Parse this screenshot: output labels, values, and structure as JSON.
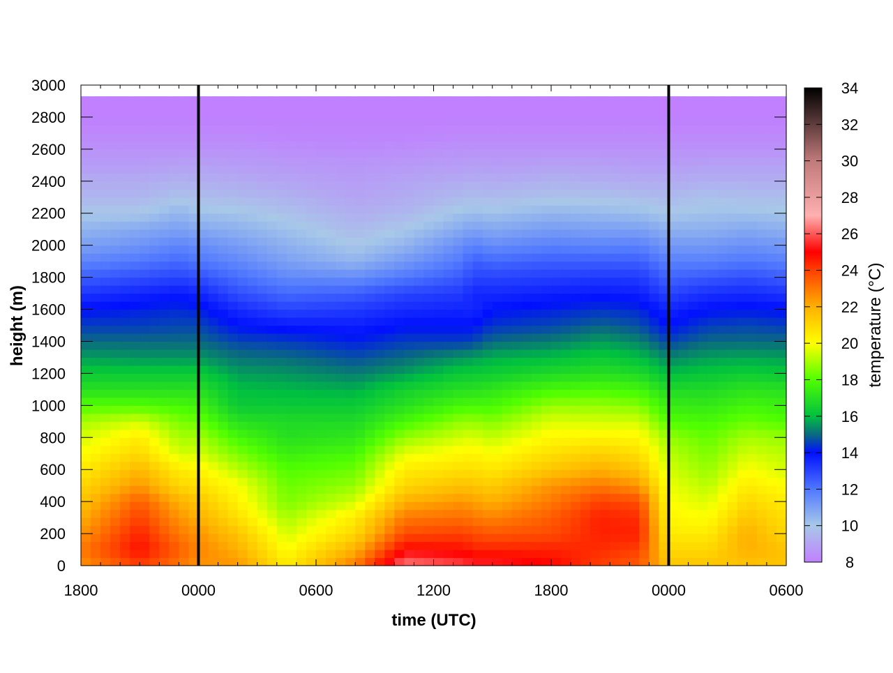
{
  "chart_data": {
    "type": "heatmap",
    "xlabel": "time (UTC)",
    "ylabel": "height (m)",
    "colorbar_label": "temperature (°C)",
    "x_range_hours": [
      0,
      36
    ],
    "x_ticks": [
      {
        "hours": 0,
        "label": "1800"
      },
      {
        "hours": 6,
        "label": "0000"
      },
      {
        "hours": 12,
        "label": "0600"
      },
      {
        "hours": 18,
        "label": "1200"
      },
      {
        "hours": 24,
        "label": "1800"
      },
      {
        "hours": 30,
        "label": "0000"
      },
      {
        "hours": 36,
        "label": "0600"
      }
    ],
    "ylim": [
      0,
      3000
    ],
    "y_ticks": [
      0,
      200,
      400,
      600,
      800,
      1000,
      1200,
      1400,
      1600,
      1800,
      2000,
      2200,
      2400,
      2600,
      2800,
      3000
    ],
    "data_top_height": 2930,
    "colorbar_range": [
      8,
      34
    ],
    "colorbar_ticks": [
      8,
      10,
      12,
      14,
      16,
      18,
      20,
      22,
      24,
      26,
      28,
      30,
      32,
      34
    ],
    "colormap": [
      {
        "t": 8,
        "color": "#c080ff"
      },
      {
        "t": 10,
        "color": "#a8c8e8"
      },
      {
        "t": 12,
        "color": "#5078ff"
      },
      {
        "t": 14,
        "color": "#0010ff"
      },
      {
        "t": 15,
        "color": "#0a6a80"
      },
      {
        "t": 16,
        "color": "#00c040"
      },
      {
        "t": 18,
        "color": "#50ff00"
      },
      {
        "t": 20,
        "color": "#ffff00"
      },
      {
        "t": 22,
        "color": "#ffb000"
      },
      {
        "t": 24,
        "color": "#ff4000"
      },
      {
        "t": 25,
        "color": "#ff0000"
      },
      {
        "t": 27,
        "color": "#ffb0b0"
      },
      {
        "t": 30,
        "color": "#c07a7a"
      },
      {
        "t": 34,
        "color": "#000000"
      }
    ],
    "vertical_lines_label": "0000",
    "vertical_lines_hours": [
      6,
      30
    ],
    "heights": [
      0,
      100,
      200,
      300,
      400,
      500,
      600,
      700,
      800,
      900,
      1000,
      1100,
      1200,
      1300,
      1400,
      1500,
      1600,
      1700,
      1800,
      1900,
      2000,
      2100,
      2200,
      2300,
      2400,
      2500,
      2600,
      2700,
      2800,
      2930
    ],
    "profiles": [
      {
        "hours": 0,
        "temps": [
          22.5,
          23.0,
          22.5,
          22.0,
          21.5,
          21.0,
          20.5,
          20.0,
          19.5,
          19.0,
          18.0,
          17.0,
          16.3,
          15.6,
          15.0,
          14.5,
          14.0,
          13.3,
          12.5,
          11.7,
          11.0,
          10.5,
          10.0,
          9.5,
          9.2,
          8.8,
          8.5,
          8.2,
          8.0,
          8.0
        ]
      },
      {
        "hours": 3,
        "temps": [
          24.0,
          24.8,
          24.5,
          24.0,
          23.5,
          22.5,
          21.8,
          21.0,
          20.5,
          19.5,
          18.0,
          17.0,
          16.3,
          15.5,
          15.0,
          14.5,
          14.2,
          13.6,
          12.8,
          12.0,
          11.3,
          10.8,
          10.0,
          9.5,
          9.2,
          8.8,
          8.5,
          8.2,
          8.0,
          8.0
        ]
      },
      {
        "hours": 5,
        "temps": [
          23.0,
          23.5,
          23.0,
          22.5,
          22.0,
          21.0,
          20.5,
          19.5,
          19.0,
          18.5,
          17.8,
          17.0,
          16.3,
          15.5,
          15.0,
          14.6,
          14.3,
          13.8,
          13.0,
          12.3,
          11.7,
          11.0,
          10.5,
          9.8,
          9.4,
          8.9,
          8.5,
          8.2,
          8.0,
          8.0
        ]
      },
      {
        "hours": 6,
        "temps": [
          22.5,
          22.8,
          22.5,
          22.0,
          21.5,
          20.8,
          20.3,
          19.5,
          19.0,
          18.3,
          17.6,
          17.0,
          16.3,
          15.5,
          15.0,
          14.6,
          14.2,
          13.6,
          12.8,
          12.0,
          11.5,
          10.8,
          10.2,
          9.7,
          9.3,
          8.9,
          8.5,
          8.2,
          8.0,
          8.0
        ]
      },
      {
        "hours": 8,
        "temps": [
          22.5,
          22.0,
          21.5,
          20.8,
          20.3,
          20.0,
          19.2,
          18.5,
          17.8,
          17.0,
          16.3,
          16.0,
          15.6,
          15.1,
          14.6,
          14.0,
          13.5,
          12.8,
          12.2,
          11.6,
          11.1,
          10.6,
          10.1,
          9.6,
          9.2,
          8.8,
          8.5,
          8.2,
          8.0,
          8.0
        ]
      },
      {
        "hours": 10.5,
        "temps": [
          20.5,
          20.0,
          19.5,
          19.0,
          18.5,
          18.3,
          18.0,
          17.5,
          17.0,
          16.8,
          16.3,
          15.9,
          15.5,
          15.0,
          14.5,
          13.8,
          13.0,
          12.3,
          11.6,
          11.0,
          10.6,
          10.2,
          9.8,
          9.4,
          9.0,
          8.7,
          8.4,
          8.1,
          8.0,
          8.0
        ]
      },
      {
        "hours": 14,
        "temps": [
          23.0,
          22.0,
          21.0,
          20.5,
          19.5,
          18.8,
          18.3,
          17.8,
          17.2,
          16.8,
          16.3,
          15.8,
          15.2,
          14.7,
          14.2,
          13.7,
          13.2,
          12.5,
          11.5,
          10.5,
          10.0,
          9.6,
          9.3,
          9.0,
          8.8,
          8.6,
          8.3,
          8.1,
          8.0,
          8.0
        ]
      },
      {
        "hours": 16.5,
        "temps": [
          26.5,
          25.0,
          23.8,
          23.0,
          22.0,
          21.0,
          20.5,
          19.7,
          18.8,
          17.8,
          17.0,
          16.5,
          15.6,
          15.0,
          14.5,
          14.0,
          13.5,
          13.0,
          12.0,
          11.2,
          10.5,
          10.0,
          9.5,
          9.2,
          9.0,
          8.7,
          8.4,
          8.1,
          8.0,
          8.0
        ]
      },
      {
        "hours": 19.5,
        "temps": [
          25.8,
          24.8,
          24.0,
          23.2,
          22.5,
          21.6,
          20.8,
          20.2,
          19.5,
          18.8,
          17.8,
          17.0,
          16.3,
          15.5,
          14.5,
          14.0,
          13.6,
          13.2,
          12.6,
          12.0,
          11.5,
          10.8,
          10.2,
          9.6,
          9.2,
          8.8,
          8.5,
          8.2,
          8.0,
          8.0
        ]
      },
      {
        "hours": 20,
        "temps": [
          25.5,
          24.5,
          23.8,
          23.0,
          22.3,
          21.5,
          20.8,
          20.3,
          19.6,
          18.8,
          17.8,
          17.0,
          16.3,
          15.6,
          14.6,
          14.0,
          13.5,
          13.6,
          13.0,
          12.5,
          11.8,
          11.0,
          10.3,
          9.7,
          9.3,
          8.9,
          8.5,
          8.2,
          8.0,
          8.0
        ]
      },
      {
        "hours": 21,
        "temps": [
          25.5,
          24.5,
          23.6,
          22.8,
          22.0,
          21.3,
          20.6,
          20.0,
          19.3,
          18.6,
          17.8,
          17.2,
          16.4,
          15.8,
          15.0,
          14.4,
          14.0,
          13.5,
          13.0,
          12.3,
          11.5,
          10.8,
          10.2,
          9.6,
          9.2,
          8.8,
          8.5,
          8.2,
          8.0,
          8.0
        ]
      },
      {
        "hours": 24,
        "temps": [
          25.0,
          24.5,
          23.8,
          23.5,
          23.0,
          22.5,
          21.5,
          20.8,
          20.2,
          19.6,
          18.8,
          17.8,
          16.8,
          16.0,
          15.2,
          14.6,
          14.2,
          13.7,
          13.1,
          12.5,
          11.8,
          11.1,
          10.5,
          9.8,
          9.4,
          8.9,
          8.5,
          8.2,
          8.0,
          8.0
        ]
      },
      {
        "hours": 26.5,
        "temps": [
          24.0,
          24.3,
          24.5,
          24.5,
          24.0,
          23.0,
          22.0,
          21.2,
          20.3,
          19.5,
          18.8,
          17.9,
          17.0,
          16.3,
          15.6,
          14.9,
          14.4,
          13.8,
          13.2,
          12.5,
          11.7,
          11.0,
          10.4,
          9.8,
          9.3,
          8.9,
          8.5,
          8.2,
          8.0,
          8.0
        ]
      },
      {
        "hours": 28.5,
        "temps": [
          23.5,
          24.0,
          24.5,
          24.3,
          23.8,
          22.5,
          21.5,
          20.8,
          20.2,
          19.5,
          18.6,
          17.7,
          16.8,
          16.0,
          15.3,
          14.7,
          14.3,
          13.7,
          13.2,
          12.5,
          11.8,
          11.0,
          10.3,
          9.7,
          9.2,
          8.8,
          8.5,
          8.2,
          8.0,
          8.0
        ]
      },
      {
        "hours": 30,
        "temps": [
          21.5,
          21.0,
          20.5,
          20.2,
          20.0,
          19.8,
          19.5,
          19.2,
          18.8,
          18.0,
          17.4,
          16.8,
          16.0,
          15.3,
          14.6,
          14.0,
          13.6,
          13.0,
          12.4,
          11.8,
          11.2,
          10.6,
          10.0,
          9.6,
          9.2,
          8.8,
          8.5,
          8.2,
          8.0,
          8.0
        ]
      },
      {
        "hours": 32,
        "temps": [
          21.5,
          21.0,
          20.5,
          20.0,
          19.6,
          19.2,
          18.8,
          18.5,
          18.2,
          17.8,
          17.3,
          16.8,
          16.2,
          15.6,
          15.0,
          14.5,
          14.0,
          13.4,
          12.6,
          11.8,
          11.2,
          10.6,
          10.2,
          9.8,
          9.3,
          8.9,
          8.5,
          8.2,
          8.0,
          8.0
        ]
      },
      {
        "hours": 34,
        "temps": [
          21.5,
          22.0,
          22.0,
          21.5,
          21.0,
          20.5,
          20.0,
          19.5,
          19.0,
          18.3,
          17.7,
          17.1,
          16.4,
          15.7,
          15.0,
          14.6,
          14.1,
          13.5,
          12.8,
          12.0,
          11.4,
          10.8,
          10.2,
          9.7,
          9.3,
          8.9,
          8.5,
          8.2,
          8.0,
          8.0
        ]
      },
      {
        "hours": 36,
        "temps": [
          21.5,
          21.5,
          21.0,
          20.8,
          20.5,
          20.0,
          19.5,
          19.2,
          18.8,
          18.0,
          17.5,
          17.0,
          16.2,
          15.6,
          15.0,
          14.5,
          14.0,
          13.3,
          12.5,
          11.8,
          11.2,
          10.6,
          10.1,
          9.7,
          9.3,
          8.9,
          8.5,
          8.2,
          8.0,
          8.0
        ]
      }
    ]
  }
}
